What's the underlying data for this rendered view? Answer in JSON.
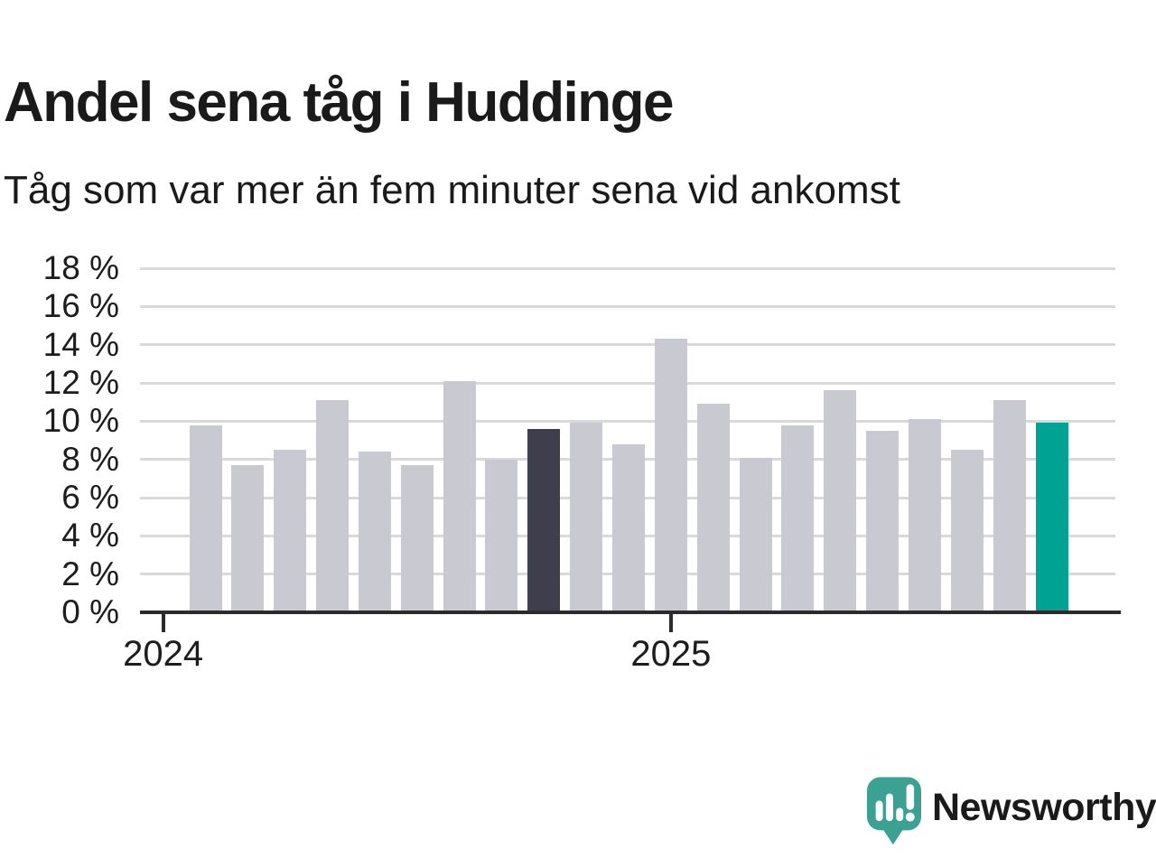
{
  "title": "Andel sena tåg i Huddinge",
  "subtitle": "Tåg som var mer än fem minuter sena vid ankomst",
  "colors": {
    "bar_default": "#c9c9d2",
    "bar_prev_year": "#3e3e4c",
    "bar_latest": "#00a294",
    "gridline": "#d9d9d9",
    "axis": "#2b2b2b",
    "text": "#1a1a1a",
    "brand": "#3ba293"
  },
  "chart_data": {
    "type": "bar",
    "title": "Andel sena tåg i Huddinge",
    "subtitle": "Tåg som var mer än fem minuter sena vid ankomst",
    "unit": "%",
    "categories": [
      "2024-02",
      "2024-03",
      "2024-04",
      "2024-05",
      "2024-06",
      "2024-07",
      "2024-08",
      "2024-09",
      "2024-10",
      "2024-11",
      "2024-12",
      "2025-01",
      "2025-02",
      "2025-03",
      "2025-04",
      "2025-05",
      "2025-06",
      "2025-07",
      "2025-08",
      "2025-09",
      "2025-10"
    ],
    "values": [
      9.8,
      7.7,
      8.5,
      11.1,
      8.4,
      7.7,
      12.1,
      8.0,
      9.6,
      9.9,
      8.8,
      14.3,
      10.9,
      8.1,
      9.8,
      11.6,
      9.5,
      10.1,
      8.5,
      11.1,
      9.9
    ],
    "highlights": {
      "dark_index": 8,
      "teal_index": 20
    },
    "ylim": [
      0,
      18
    ],
    "ytick_step": 2,
    "yticklabels": [
      "0 %",
      "2 %",
      "4 %",
      "6 %",
      "8 %",
      "10 %",
      "12 %",
      "14 %",
      "16 %",
      "18 %"
    ],
    "xticks": [
      {
        "label": "2024",
        "bar_index": -1
      },
      {
        "label": "2025",
        "bar_index": 11
      }
    ],
    "grid": "horizontal",
    "legend": "none"
  },
  "branding": {
    "logo_text": "Newsworthy"
  }
}
